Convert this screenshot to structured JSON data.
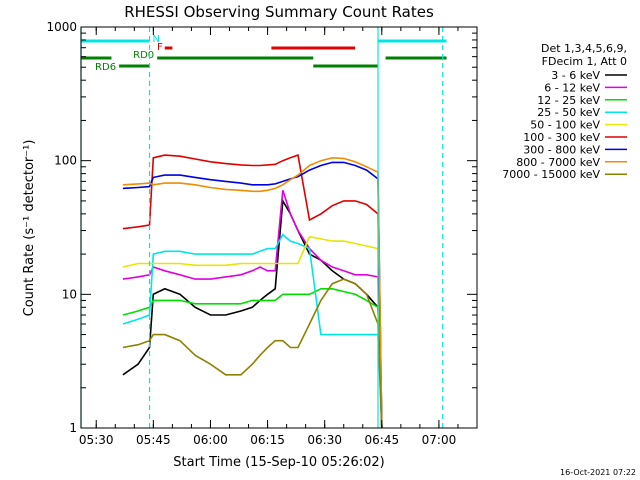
{
  "chart_data": {
    "type": "line",
    "title": "RHESSI Observing Summary Count Rates",
    "xlabel": "Start Time (15-Sep-10 05:26:02)",
    "ylabel": "Count Rate (s⁻¹ detector⁻¹)",
    "y_scale": "log",
    "ylim": [
      1,
      1000
    ],
    "xlim": [
      "05:26",
      "07:10"
    ],
    "x_ticks": [
      "05:30",
      "05:45",
      "06:00",
      "06:15",
      "06:30",
      "06:45",
      "07:00"
    ],
    "y_ticks": [
      "1",
      "10",
      "100",
      "1000"
    ],
    "footer_date": "16-Oct-2021 07:22",
    "legend_header": [
      "Det 1,3,4,5,6,9,",
      "FDecim 1, Att 0"
    ],
    "vertical_markers": [
      {
        "time": "05:26",
        "style": "solid",
        "color": "#00e6e6"
      },
      {
        "time": "05:44",
        "style": "dashed",
        "color": "#00e6e6"
      },
      {
        "time": "06:44",
        "style": "solid",
        "color": "#00e6e6"
      },
      {
        "time": "07:01",
        "style": "dashed",
        "color": "#00e6e6"
      }
    ],
    "state_bars": [
      {
        "label": "N",
        "color": "#00e6e6",
        "segments": [
          [
            "05:26",
            "05:44"
          ],
          [
            "06:44",
            "07:02"
          ]
        ]
      },
      {
        "label": "F",
        "color": "#e00000",
        "segments": [
          [
            "05:48",
            "05:50"
          ],
          [
            "06:16",
            "06:38"
          ]
        ]
      },
      {
        "label": "RD0",
        "color": "#008000",
        "segments": [
          [
            "05:26",
            "05:34"
          ],
          [
            "05:46",
            "06:27"
          ],
          [
            "06:46",
            "07:02"
          ]
        ]
      },
      {
        "label": "RD6",
        "color": "#008000",
        "segments": [
          [
            "05:36",
            "05:44"
          ],
          [
            "06:27",
            "06:44"
          ]
        ]
      }
    ],
    "series": [
      {
        "name": "3 - 6 keV",
        "color": "#000000",
        "x": [
          "05:37",
          "05:41",
          "05:44",
          "05:45",
          "05:48",
          "05:52",
          "05:56",
          "06:00",
          "06:04",
          "06:08",
          "06:11",
          "06:13",
          "06:15",
          "06:17",
          "06:19",
          "06:21",
          "06:23",
          "06:26",
          "06:29",
          "06:32",
          "06:35",
          "06:38",
          "06:41",
          "06:44",
          "06:45"
        ],
        "y": [
          2.5,
          3,
          4,
          10,
          11,
          10,
          8,
          7,
          7,
          7.5,
          8,
          9,
          10,
          11,
          50,
          40,
          30,
          20,
          18,
          15,
          13,
          12,
          10,
          8,
          1
        ]
      },
      {
        "name": "6 - 12 keV",
        "color": "#e000e0",
        "x": [
          "05:37",
          "05:41",
          "05:44",
          "05:45",
          "05:48",
          "05:52",
          "05:56",
          "06:00",
          "06:04",
          "06:08",
          "06:11",
          "06:13",
          "06:15",
          "06:17",
          "06:19",
          "06:21",
          "06:23",
          "06:26",
          "06:29",
          "06:32",
          "06:35",
          "06:38",
          "06:41",
          "06:44",
          "06:45"
        ],
        "y": [
          13,
          13.5,
          14,
          16,
          15,
          14,
          13,
          13,
          13.5,
          14,
          15,
          16,
          15,
          15,
          60,
          40,
          30,
          22,
          18,
          16,
          15,
          14,
          14,
          13.5,
          1
        ]
      },
      {
        "name": "12 - 25 keV",
        "color": "#00e000",
        "x": [
          "05:37",
          "05:41",
          "05:44",
          "05:45",
          "05:48",
          "05:52",
          "05:56",
          "06:00",
          "06:04",
          "06:08",
          "06:11",
          "06:13",
          "06:15",
          "06:17",
          "06:19",
          "06:21",
          "06:23",
          "06:26",
          "06:29",
          "06:32",
          "06:35",
          "06:38",
          "06:41",
          "06:44",
          "06:45"
        ],
        "y": [
          7,
          7.5,
          8,
          9,
          9,
          9,
          8.5,
          8.5,
          8.5,
          8.5,
          9,
          9,
          9,
          9,
          10,
          10,
          10,
          10,
          11,
          11,
          10.5,
          10,
          9,
          8,
          1
        ]
      },
      {
        "name": "25 - 50 keV",
        "color": "#00e6e6",
        "x": [
          "05:37",
          "05:41",
          "05:44",
          "05:45",
          "05:48",
          "05:52",
          "05:56",
          "06:00",
          "06:04",
          "06:08",
          "06:11",
          "06:13",
          "06:15",
          "06:17",
          "06:19",
          "06:21",
          "06:23",
          "06:26",
          "06:29",
          "06:32",
          "06:35",
          "06:38",
          "06:41",
          "06:44",
          "06:45"
        ],
        "y": [
          6,
          6.5,
          7,
          20,
          21,
          21,
          20,
          20,
          20,
          20,
          20,
          21,
          22,
          22,
          28,
          25,
          24,
          22,
          5,
          5,
          5,
          5,
          5,
          5,
          1
        ]
      },
      {
        "name": "50 - 100 keV",
        "color": "#e6e600",
        "x": [
          "05:37",
          "05:41",
          "05:44",
          "05:45",
          "05:48",
          "05:52",
          "05:56",
          "06:00",
          "06:04",
          "06:08",
          "06:11",
          "06:13",
          "06:15",
          "06:17",
          "06:19",
          "06:21",
          "06:23",
          "06:26",
          "06:29",
          "06:32",
          "06:35",
          "06:38",
          "06:41",
          "06:44",
          "06:45"
        ],
        "y": [
          16,
          17,
          17,
          17,
          17,
          17,
          16.5,
          16.5,
          16.5,
          17,
          17,
          17,
          17,
          17,
          17,
          17,
          17,
          27,
          26,
          25,
          25,
          24,
          23,
          22,
          1
        ]
      },
      {
        "name": "100 - 300 keV",
        "color": "#e00000",
        "x": [
          "05:37",
          "05:41",
          "05:44",
          "05:45",
          "05:48",
          "05:52",
          "05:56",
          "06:00",
          "06:04",
          "06:08",
          "06:11",
          "06:13",
          "06:15",
          "06:17",
          "06:19",
          "06:21",
          "06:23",
          "06:26",
          "06:29",
          "06:32",
          "06:35",
          "06:38",
          "06:41",
          "06:44",
          "06:45"
        ],
        "y": [
          31,
          32,
          33,
          105,
          110,
          108,
          103,
          98,
          95,
          93,
          92,
          92,
          93,
          94,
          100,
          105,
          110,
          36,
          40,
          46,
          50,
          50,
          47,
          40,
          1
        ]
      },
      {
        "name": "300 - 800 keV",
        "color": "#0000e0",
        "x": [
          "05:37",
          "05:41",
          "05:44",
          "05:45",
          "05:48",
          "05:52",
          "05:56",
          "06:00",
          "06:04",
          "06:08",
          "06:11",
          "06:13",
          "06:15",
          "06:17",
          "06:19",
          "06:21",
          "06:23",
          "06:26",
          "06:29",
          "06:32",
          "06:35",
          "06:38",
          "06:41",
          "06:44",
          "06:45"
        ],
        "y": [
          62,
          63,
          64,
          75,
          78,
          78,
          75,
          72,
          70,
          68,
          66,
          66,
          66,
          67,
          70,
          73,
          76,
          85,
          92,
          97,
          97,
          92,
          85,
          73,
          1
        ]
      },
      {
        "name": "800 - 7000 keV",
        "color": "#f08c00",
        "x": [
          "05:37",
          "05:41",
          "05:44",
          "05:45",
          "05:48",
          "05:52",
          "05:56",
          "06:00",
          "06:04",
          "06:08",
          "06:11",
          "06:13",
          "06:15",
          "06:17",
          "06:19",
          "06:21",
          "06:23",
          "06:26",
          "06:29",
          "06:32",
          "06:35",
          "06:38",
          "06:41",
          "06:44",
          "06:45"
        ],
        "y": [
          66,
          67,
          68,
          66,
          68,
          68,
          66,
          63,
          61,
          60,
          59,
          59,
          60,
          62,
          66,
          72,
          78,
          92,
          100,
          105,
          104,
          98,
          90,
          82,
          1
        ]
      },
      {
        "name": "7000 - 15000 keV",
        "color": "#8c8200",
        "x": [
          "05:37",
          "05:41",
          "05:44",
          "05:45",
          "05:48",
          "05:52",
          "05:56",
          "06:00",
          "06:04",
          "06:08",
          "06:11",
          "06:13",
          "06:15",
          "06:17",
          "06:19",
          "06:21",
          "06:23",
          "06:26",
          "06:29",
          "06:32",
          "06:35",
          "06:38",
          "06:41",
          "06:44",
          "06:45"
        ],
        "y": [
          4,
          4.2,
          4.5,
          5,
          5,
          4.5,
          3.5,
          3,
          2.5,
          2.5,
          3,
          3.5,
          4,
          4.5,
          4.5,
          4,
          4,
          6,
          9,
          12,
          13,
          12,
          10,
          6,
          1
        ]
      }
    ]
  }
}
